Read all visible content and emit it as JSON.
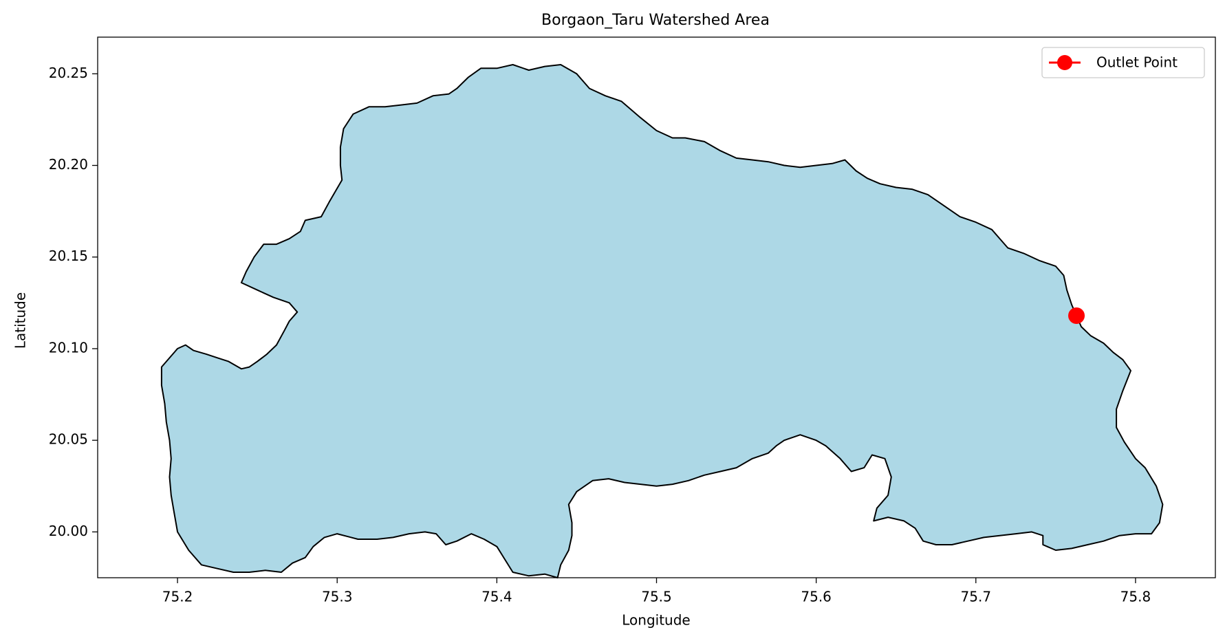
{
  "chart_data": {
    "type": "map",
    "title": "Borgaon_Taru Watershed Area",
    "xlabel": "Longitude",
    "ylabel": "Latitude",
    "xlim": [
      75.15,
      75.85
    ],
    "ylim": [
      19.975,
      20.27
    ],
    "xticks": [
      75.2,
      75.3,
      75.4,
      75.5,
      75.6,
      75.7,
      75.8
    ],
    "xtick_labels": [
      "75.2",
      "75.3",
      "75.4",
      "75.5",
      "75.6",
      "75.7",
      "75.8"
    ],
    "yticks": [
      20.0,
      20.05,
      20.1,
      20.15,
      20.2,
      20.25
    ],
    "ytick_labels": [
      "20.00",
      "20.05",
      "20.10",
      "20.15",
      "20.20",
      "20.25"
    ],
    "grid": false,
    "legend": {
      "position": "top-right",
      "entries": [
        {
          "label": "Outlet Point",
          "color": "#ff0000",
          "marker": "circle"
        }
      ]
    },
    "watershed": {
      "fill": "#add8e6",
      "edge": "#000000",
      "boundary": [
        [
          75.19,
          20.09
        ],
        [
          75.2,
          20.1
        ],
        [
          75.205,
          20.102
        ],
        [
          75.21,
          20.099
        ],
        [
          75.218,
          20.097
        ],
        [
          75.225,
          20.095
        ],
        [
          75.232,
          20.093
        ],
        [
          75.24,
          20.089
        ],
        [
          75.245,
          20.09
        ],
        [
          75.25,
          20.093
        ],
        [
          75.256,
          20.097
        ],
        [
          75.262,
          20.102
        ],
        [
          75.267,
          20.11
        ],
        [
          75.27,
          20.115
        ],
        [
          75.275,
          20.12
        ],
        [
          75.27,
          20.125
        ],
        [
          75.26,
          20.128
        ],
        [
          75.25,
          20.132
        ],
        [
          75.24,
          20.136
        ],
        [
          75.243,
          20.142
        ],
        [
          75.248,
          20.15
        ],
        [
          75.254,
          20.157
        ],
        [
          75.262,
          20.157
        ],
        [
          75.27,
          20.16
        ],
        [
          75.277,
          20.164
        ],
        [
          75.28,
          20.17
        ],
        [
          75.29,
          20.172
        ],
        [
          75.295,
          20.18
        ],
        [
          75.303,
          20.192
        ],
        [
          75.302,
          20.2
        ],
        [
          75.302,
          20.21
        ],
        [
          75.304,
          20.22
        ],
        [
          75.31,
          20.228
        ],
        [
          75.32,
          20.232
        ],
        [
          75.33,
          20.232
        ],
        [
          75.34,
          20.233
        ],
        [
          75.35,
          20.234
        ],
        [
          75.36,
          20.238
        ],
        [
          75.37,
          20.239
        ],
        [
          75.375,
          20.242
        ],
        [
          75.382,
          20.248
        ],
        [
          75.39,
          20.253
        ],
        [
          75.4,
          20.253
        ],
        [
          75.41,
          20.255
        ],
        [
          75.42,
          20.252
        ],
        [
          75.43,
          20.254
        ],
        [
          75.44,
          20.255
        ],
        [
          75.45,
          20.25
        ],
        [
          75.458,
          20.242
        ],
        [
          75.468,
          20.238
        ],
        [
          75.478,
          20.235
        ],
        [
          75.49,
          20.226
        ],
        [
          75.5,
          20.219
        ],
        [
          75.51,
          20.215
        ],
        [
          75.518,
          20.215
        ],
        [
          75.53,
          20.213
        ],
        [
          75.54,
          20.208
        ],
        [
          75.55,
          20.204
        ],
        [
          75.56,
          20.203
        ],
        [
          75.57,
          20.202
        ],
        [
          75.58,
          20.2
        ],
        [
          75.59,
          20.199
        ],
        [
          75.6,
          20.2
        ],
        [
          75.61,
          20.201
        ],
        [
          75.618,
          20.203
        ],
        [
          75.625,
          20.197
        ],
        [
          75.632,
          20.193
        ],
        [
          75.64,
          20.19
        ],
        [
          75.65,
          20.188
        ],
        [
          75.66,
          20.187
        ],
        [
          75.67,
          20.184
        ],
        [
          75.68,
          20.178
        ],
        [
          75.69,
          20.172
        ],
        [
          75.7,
          20.169
        ],
        [
          75.71,
          20.165
        ],
        [
          75.715,
          20.16
        ],
        [
          75.72,
          20.155
        ],
        [
          75.73,
          20.152
        ],
        [
          75.74,
          20.148
        ],
        [
          75.75,
          20.145
        ],
        [
          75.755,
          20.14
        ],
        [
          75.757,
          20.132
        ],
        [
          75.76,
          20.124
        ],
        [
          75.763,
          20.118
        ],
        [
          75.766,
          20.112
        ],
        [
          75.772,
          20.107
        ],
        [
          75.78,
          20.103
        ],
        [
          75.786,
          20.098
        ],
        [
          75.792,
          20.094
        ],
        [
          75.797,
          20.088
        ],
        [
          75.792,
          20.077
        ],
        [
          75.788,
          20.067
        ],
        [
          75.788,
          20.057
        ],
        [
          75.793,
          20.049
        ],
        [
          75.8,
          20.04
        ],
        [
          75.806,
          20.035
        ],
        [
          75.813,
          20.025
        ],
        [
          75.817,
          20.015
        ],
        [
          75.815,
          20.005
        ],
        [
          75.81,
          19.999
        ],
        [
          75.8,
          19.999
        ],
        [
          75.79,
          19.998
        ],
        [
          75.78,
          19.995
        ],
        [
          75.77,
          19.993
        ],
        [
          75.76,
          19.991
        ],
        [
          75.75,
          19.99
        ],
        [
          75.742,
          19.993
        ],
        [
          75.742,
          19.998
        ],
        [
          75.735,
          20.0
        ],
        [
          75.725,
          19.999
        ],
        [
          75.715,
          19.998
        ],
        [
          75.705,
          19.997
        ],
        [
          75.695,
          19.995
        ],
        [
          75.685,
          19.993
        ],
        [
          75.675,
          19.993
        ],
        [
          75.667,
          19.995
        ],
        [
          75.662,
          20.002
        ],
        [
          75.655,
          20.006
        ],
        [
          75.645,
          20.008
        ],
        [
          75.636,
          20.006
        ],
        [
          75.638,
          20.013
        ],
        [
          75.645,
          20.02
        ],
        [
          75.647,
          20.03
        ],
        [
          75.643,
          20.04
        ],
        [
          75.635,
          20.042
        ],
        [
          75.63,
          20.035
        ],
        [
          75.622,
          20.033
        ],
        [
          75.615,
          20.04
        ],
        [
          75.606,
          20.047
        ],
        [
          75.6,
          20.05
        ],
        [
          75.59,
          20.053
        ],
        [
          75.58,
          20.05
        ],
        [
          75.575,
          20.047
        ],
        [
          75.57,
          20.043
        ],
        [
          75.56,
          20.04
        ],
        [
          75.55,
          20.035
        ],
        [
          75.54,
          20.033
        ],
        [
          75.53,
          20.031
        ],
        [
          75.52,
          20.028
        ],
        [
          75.51,
          20.026
        ],
        [
          75.5,
          20.025
        ],
        [
          75.49,
          20.026
        ],
        [
          75.48,
          20.027
        ],
        [
          75.47,
          20.029
        ],
        [
          75.46,
          20.028
        ],
        [
          75.45,
          20.022
        ],
        [
          75.445,
          20.015
        ],
        [
          75.447,
          20.005
        ],
        [
          75.447,
          19.998
        ],
        [
          75.445,
          19.99
        ],
        [
          75.44,
          19.982
        ],
        [
          75.438,
          19.975
        ],
        [
          75.43,
          19.977
        ],
        [
          75.42,
          19.976
        ],
        [
          75.41,
          19.978
        ],
        [
          75.405,
          19.985
        ],
        [
          75.4,
          19.992
        ],
        [
          75.392,
          19.996
        ],
        [
          75.384,
          19.999
        ],
        [
          75.375,
          19.995
        ],
        [
          75.368,
          19.993
        ],
        [
          75.362,
          19.999
        ],
        [
          75.355,
          20.0
        ],
        [
          75.345,
          19.999
        ],
        [
          75.335,
          19.997
        ],
        [
          75.325,
          19.996
        ],
        [
          75.313,
          19.996
        ],
        [
          75.3,
          19.999
        ],
        [
          75.292,
          19.997
        ],
        [
          75.285,
          19.992
        ],
        [
          75.28,
          19.986
        ],
        [
          75.272,
          19.983
        ],
        [
          75.265,
          19.978
        ],
        [
          75.255,
          19.979
        ],
        [
          75.245,
          19.978
        ],
        [
          75.235,
          19.978
        ],
        [
          75.225,
          19.98
        ],
        [
          75.215,
          19.982
        ],
        [
          75.207,
          19.99
        ],
        [
          75.2,
          20.0
        ],
        [
          75.198,
          20.01
        ],
        [
          75.196,
          20.02
        ],
        [
          75.195,
          20.03
        ],
        [
          75.196,
          20.04
        ],
        [
          75.195,
          20.05
        ],
        [
          75.193,
          20.06
        ],
        [
          75.192,
          20.07
        ],
        [
          75.19,
          20.08
        ]
      ]
    },
    "outlet_point": {
      "label": "Outlet Point",
      "x": 75.763,
      "y": 20.118,
      "color": "#ff0000"
    }
  }
}
